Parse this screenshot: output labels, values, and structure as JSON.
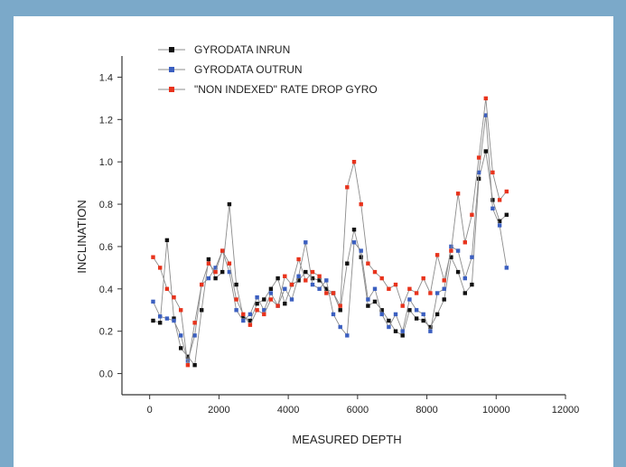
{
  "colors": {
    "background_frame": "#7ba9c9",
    "panel": "#ffffff",
    "connector_line": "#8c8c8c",
    "inrun": "#111111",
    "outrun": "#3b5fc0",
    "rate_drop": "#e8331c"
  },
  "chart_data": {
    "type": "line",
    "title": "",
    "xlabel": "MEASURED DEPTH",
    "ylabel": "INCLINATION",
    "xlim": [
      -800,
      12000
    ],
    "ylim": [
      -0.1,
      1.5
    ],
    "xticks": [
      0,
      2000,
      4000,
      6000,
      8000,
      10000,
      12000
    ],
    "xtick_labels": [
      "0",
      "2000",
      "4000",
      "6000",
      "8000",
      "10000",
      "12000"
    ],
    "yticks": [
      0.0,
      0.2,
      0.4,
      0.6,
      0.8,
      1.0,
      1.2,
      1.4
    ],
    "ytick_labels": [
      "0.0",
      "0.2",
      "0.4",
      "0.6",
      "0.8",
      "1.0",
      "1.2",
      "1.4"
    ],
    "grid": false,
    "legend_position": "top-left",
    "series": [
      {
        "name": "GYRODATA INRUN",
        "color": "#111111",
        "x": [
          100,
          300,
          500,
          700,
          900,
          1100,
          1300,
          1500,
          1700,
          1900,
          2100,
          2300,
          2500,
          2700,
          2900,
          3100,
          3300,
          3500,
          3700,
          3900,
          4100,
          4300,
          4500,
          4700,
          4900,
          5100,
          5300,
          5500,
          5700,
          5900,
          6100,
          6300,
          6500,
          6700,
          6900,
          7100,
          7300,
          7500,
          7700,
          7900,
          8100,
          8300,
          8500,
          8700,
          8900,
          9100,
          9300,
          9500,
          9700,
          9900,
          10100,
          10300
        ],
        "y": [
          0.25,
          0.24,
          0.63,
          0.26,
          0.12,
          0.08,
          0.04,
          0.3,
          0.54,
          0.45,
          0.48,
          0.8,
          0.42,
          0.27,
          0.25,
          0.33,
          0.35,
          0.4,
          0.45,
          0.33,
          0.42,
          0.44,
          0.48,
          0.45,
          0.44,
          0.4,
          0.38,
          0.3,
          0.52,
          0.68,
          0.55,
          0.32,
          0.34,
          0.3,
          0.25,
          0.2,
          0.18,
          0.3,
          0.26,
          0.25,
          0.22,
          0.28,
          0.35,
          0.55,
          0.48,
          0.38,
          0.42,
          0.92,
          1.05,
          0.82,
          0.72,
          0.75
        ]
      },
      {
        "name": "GYRODATA OUTRUN",
        "color": "#3b5fc0",
        "x": [
          100,
          300,
          500,
          700,
          900,
          1100,
          1300,
          1500,
          1700,
          1900,
          2100,
          2300,
          2500,
          2700,
          2900,
          3100,
          3300,
          3500,
          3700,
          3900,
          4100,
          4300,
          4500,
          4700,
          4900,
          5100,
          5300,
          5500,
          5700,
          5900,
          6100,
          6300,
          6500,
          6700,
          6900,
          7100,
          7300,
          7500,
          7700,
          7900,
          8100,
          8300,
          8500,
          8700,
          8900,
          9100,
          9300,
          9500,
          9700,
          9900,
          10100,
          10300
        ],
        "y": [
          0.34,
          0.27,
          0.26,
          0.25,
          0.18,
          0.06,
          0.18,
          0.42,
          0.45,
          0.5,
          0.58,
          0.48,
          0.3,
          0.25,
          0.28,
          0.36,
          0.3,
          0.38,
          0.32,
          0.4,
          0.35,
          0.46,
          0.62,
          0.42,
          0.4,
          0.44,
          0.28,
          0.22,
          0.18,
          0.62,
          0.58,
          0.35,
          0.4,
          0.28,
          0.22,
          0.28,
          0.2,
          0.35,
          0.3,
          0.28,
          0.2,
          0.38,
          0.4,
          0.6,
          0.58,
          0.45,
          0.55,
          0.95,
          1.22,
          0.78,
          0.7,
          0.5
        ]
      },
      {
        "name": "\"NON INDEXED\" RATE  DROP GYRO",
        "color": "#e8331c",
        "x": [
          100,
          300,
          500,
          700,
          900,
          1100,
          1300,
          1500,
          1700,
          1900,
          2100,
          2300,
          2500,
          2700,
          2900,
          3100,
          3300,
          3500,
          3700,
          3900,
          4100,
          4300,
          4500,
          4700,
          4900,
          5100,
          5300,
          5500,
          5700,
          5900,
          6100,
          6300,
          6500,
          6700,
          6900,
          7100,
          7300,
          7500,
          7700,
          7900,
          8100,
          8300,
          8500,
          8700,
          8900,
          9100,
          9300,
          9500,
          9700,
          9900,
          10100,
          10300
        ],
        "y": [
          0.55,
          0.5,
          0.4,
          0.36,
          0.3,
          0.04,
          0.24,
          0.42,
          0.52,
          0.48,
          0.58,
          0.52,
          0.35,
          0.28,
          0.23,
          0.3,
          0.28,
          0.35,
          0.32,
          0.46,
          0.42,
          0.54,
          0.44,
          0.48,
          0.46,
          0.38,
          0.38,
          0.32,
          0.88,
          1.0,
          0.8,
          0.52,
          0.48,
          0.45,
          0.4,
          0.42,
          0.32,
          0.4,
          0.38,
          0.45,
          0.38,
          0.56,
          0.44,
          0.58,
          0.85,
          0.62,
          0.75,
          1.02,
          1.3,
          0.95,
          0.82,
          0.86
        ]
      }
    ]
  }
}
